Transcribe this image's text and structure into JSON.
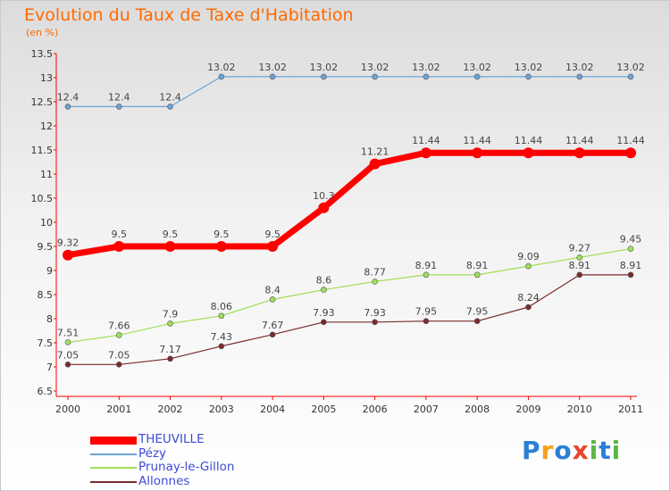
{
  "chart_data": {
    "type": "line",
    "title": "Evolution du Taux de Taxe d'Habitation",
    "ylabel": "(en %)",
    "ylim": [
      6.5,
      13.5
    ],
    "yticks": [
      "6.5",
      "7",
      "7.5",
      "8",
      "8.5",
      "9",
      "9.5",
      "10",
      "10.5",
      "11",
      "11.5",
      "12",
      "12.5",
      "13",
      "13.5"
    ],
    "categories": [
      "2000",
      "2001",
      "2002",
      "2003",
      "2004",
      "2005",
      "2006",
      "2007",
      "2008",
      "2009",
      "2010",
      "2011"
    ],
    "grid": false,
    "legend_position": "bottom-left",
    "series": [
      {
        "name": "THEUVILLE",
        "color": "#ff0000",
        "values": [
          9.32,
          9.5,
          9.5,
          9.5,
          9.5,
          10.3,
          11.21,
          11.44,
          11.44,
          11.44,
          11.44,
          11.44
        ],
        "labels": [
          "9.32",
          "9.5",
          "9.5",
          "9.5",
          "9.5",
          "10.3",
          "11.21",
          "11.44",
          "11.44",
          "11.44",
          "11.44",
          "11.44"
        ]
      },
      {
        "name": "Pézy",
        "color": "#6ba3d6",
        "values": [
          12.4,
          12.4,
          12.4,
          13.02,
          13.02,
          13.02,
          13.02,
          13.02,
          13.02,
          13.02,
          13.02,
          13.02
        ],
        "labels": [
          "12.4",
          "12.4",
          "12.4",
          "13.02",
          "13.02",
          "13.02",
          "13.02",
          "13.02",
          "13.02",
          "13.02",
          "13.02",
          "13.02"
        ]
      },
      {
        "name": "Prunay-le-Gillon",
        "color": "#9ee05a",
        "values": [
          7.51,
          7.66,
          7.9,
          8.06,
          8.4,
          8.6,
          8.77,
          8.91,
          8.91,
          9.09,
          9.27,
          9.45
        ],
        "labels": [
          "7.51",
          "7.66",
          "7.9",
          "8.06",
          "8.4",
          "8.6",
          "8.77",
          "8.91",
          "8.91",
          "9.09",
          "9.27",
          "9.45"
        ]
      },
      {
        "name": "Allonnes",
        "color": "#7a2a2a",
        "values": [
          7.05,
          7.05,
          7.17,
          7.43,
          7.67,
          7.93,
          7.93,
          7.95,
          7.95,
          8.24,
          8.91,
          8.91
        ],
        "labels": [
          "7.05",
          "7.05",
          "7.17",
          "7.43",
          "7.67",
          "7.93",
          "7.93",
          "7.95",
          "7.95",
          "8.24",
          "8.91",
          "8.91"
        ]
      }
    ]
  },
  "logo": {
    "letters": [
      "P",
      "r",
      "o",
      "x",
      "i",
      "t",
      "i"
    ],
    "colors": [
      "#2a7fd4",
      "#f2a11f",
      "#2a7fd4",
      "#e8452c",
      "#5ab648",
      "#2a7fd4",
      "#5ab648"
    ]
  }
}
